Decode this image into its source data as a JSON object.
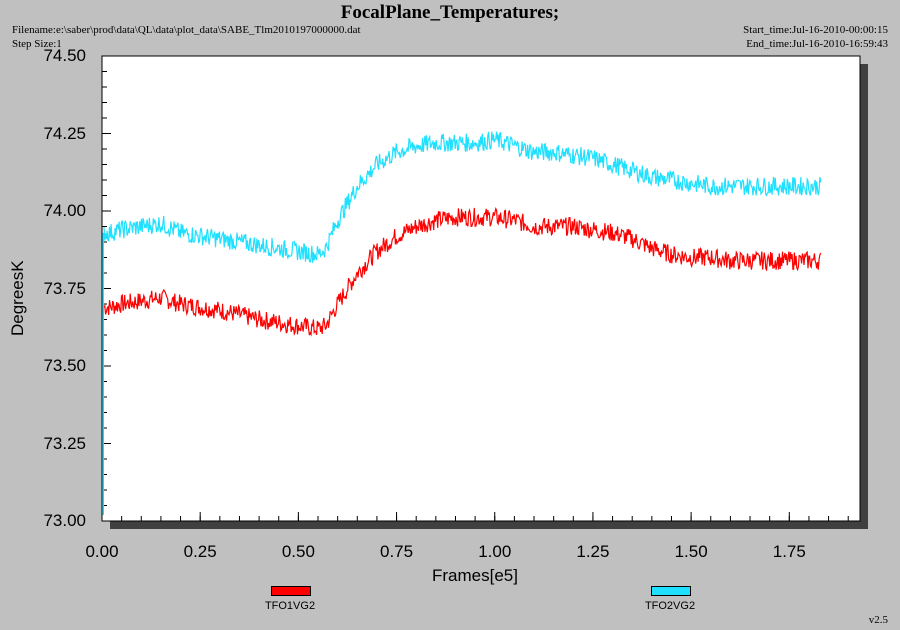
{
  "header": {
    "title": "FocalPlane_Temperatures;",
    "filename": "Filename:e:\\saber\\prod\\data\\QL\\data\\plot_data\\SABE_Tlm2010197000000.dat",
    "step_size": "Step Size:1",
    "start_time": "Start_time:Jul-16-2010-00:00:15",
    "end_time": "End_time:Jul-16-2010-16:59:43"
  },
  "version": "v2.5",
  "chart_data": {
    "type": "line",
    "title": "FocalPlane_Temperatures;",
    "xlabel": "Frames[e5]",
    "ylabel": "DegreesK",
    "xlim": [
      0,
      1.93
    ],
    "ylim": [
      73.0,
      74.5
    ],
    "x_ticks": [
      "0.00",
      "0.25",
      "0.50",
      "0.75",
      "1.00",
      "1.25",
      "1.50",
      "1.75"
    ],
    "y_ticks": [
      "74.50",
      "74.25",
      "74.00",
      "73.75",
      "73.50",
      "73.25",
      "73.00"
    ],
    "grid": false,
    "legend_position": "bottom",
    "x": [
      0.0,
      0.02,
      0.05,
      0.1,
      0.15,
      0.2,
      0.3,
      0.4,
      0.5,
      0.55,
      0.57,
      0.6,
      0.65,
      0.7,
      0.75,
      0.8,
      0.85,
      0.9,
      0.95,
      1.0,
      1.05,
      1.1,
      1.15,
      1.2,
      1.25,
      1.3,
      1.35,
      1.4,
      1.45,
      1.5,
      1.55,
      1.6,
      1.65,
      1.7,
      1.75,
      1.8,
      1.83
    ],
    "series": [
      {
        "name": "TFO1VG2",
        "color": "#ff0000",
        "values": [
          73.69,
          73.69,
          73.7,
          73.71,
          73.72,
          73.7,
          73.68,
          73.65,
          73.63,
          73.62,
          73.63,
          73.7,
          73.8,
          73.87,
          73.92,
          73.95,
          73.97,
          73.98,
          73.98,
          73.98,
          73.97,
          73.95,
          73.95,
          73.95,
          73.94,
          73.93,
          73.91,
          73.88,
          73.86,
          73.85,
          73.85,
          73.84,
          73.84,
          73.84,
          73.84,
          73.84,
          73.84
        ]
      },
      {
        "name": "TFO2VG2",
        "color": "#1fe0ff",
        "values": [
          73.93,
          73.93,
          73.94,
          73.95,
          73.96,
          73.93,
          73.91,
          73.89,
          73.87,
          73.86,
          73.88,
          73.97,
          74.08,
          74.15,
          74.19,
          74.21,
          74.22,
          74.22,
          74.22,
          74.23,
          74.21,
          74.19,
          74.19,
          74.18,
          74.17,
          74.15,
          74.13,
          74.11,
          74.1,
          74.09,
          74.08,
          74.08,
          74.08,
          74.08,
          74.08,
          74.08,
          74.08
        ]
      }
    ]
  }
}
